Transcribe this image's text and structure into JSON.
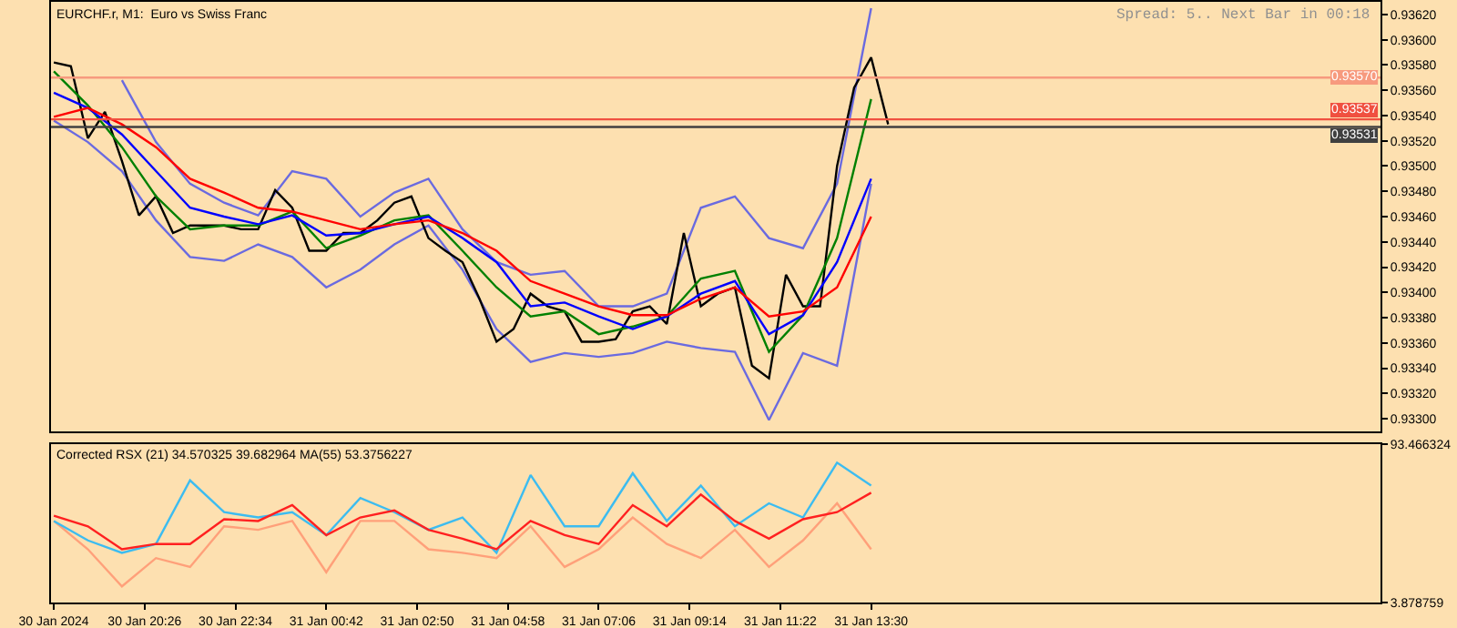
{
  "chart_data": [
    {
      "type": "line",
      "title": "EURCHF.r, M1:  Euro vs Swiss Franc",
      "annotations": [
        "Spread: 5.. Next Bar in 00:18"
      ],
      "x": [
        "2024-01-30T18:18",
        "2024-01-30T18:42",
        "2024-01-30T19:06",
        "2024-01-30T19:30",
        "2024-01-30T19:54",
        "2024-01-30T20:18",
        "2024-01-30T20:42",
        "2024-01-30T21:06",
        "2024-01-30T21:30",
        "2024-01-30T21:54",
        "2024-01-30T22:18",
        "2024-01-30T22:42",
        "2024-01-30T23:06",
        "2024-01-30T23:30",
        "2024-01-30T23:54",
        "2024-01-31T00:18",
        "2024-01-31T00:42",
        "2024-01-31T01:06",
        "2024-01-31T01:30",
        "2024-01-31T01:54",
        "2024-01-31T02:18",
        "2024-01-31T02:42",
        "2024-01-31T03:06",
        "2024-01-31T03:30",
        "2024-01-31T03:54",
        "2024-01-31T04:18",
        "2024-01-31T04:42",
        "2024-01-31T05:06",
        "2024-01-31T05:30",
        "2024-01-31T05:54",
        "2024-01-31T06:18",
        "2024-01-31T06:42",
        "2024-01-31T07:06",
        "2024-01-31T07:30",
        "2024-01-31T07:54",
        "2024-01-31T08:18",
        "2024-01-31T08:42",
        "2024-01-31T09:06",
        "2024-01-31T09:30",
        "2024-01-31T09:54",
        "2024-01-31T10:18",
        "2024-01-31T10:42",
        "2024-01-31T11:06",
        "2024-01-31T11:30",
        "2024-01-31T11:54",
        "2024-01-31T12:18",
        "2024-01-31T12:42",
        "2024-01-31T13:06",
        "2024-01-31T13:30",
        "2024-01-31T13:54"
      ],
      "series": [
        {
          "color": "#6a6ae0",
          "x": [
            "2024-01-30T19:54",
            "2024-01-30T20:42",
            "2024-01-30T21:30",
            "2024-01-30T22:18",
            "2024-01-30T23:06",
            "2024-01-30T23:54",
            "2024-01-31T00:42",
            "2024-01-31T01:30",
            "2024-01-31T02:18",
            "2024-01-31T03:06",
            "2024-01-31T03:54",
            "2024-01-31T04:42",
            "2024-01-31T05:30",
            "2024-01-31T06:18",
            "2024-01-31T07:06",
            "2024-01-31T07:54",
            "2024-01-31T08:42",
            "2024-01-31T09:30",
            "2024-01-31T10:18",
            "2024-01-31T11:06",
            "2024-01-31T11:54",
            "2024-01-31T12:42",
            "2024-01-31T13:30"
          ],
          "values": [
            0.93568,
            0.93519,
            0.93486,
            0.93471,
            0.93461,
            0.93496,
            0.9349,
            0.9346,
            0.93479,
            0.9349,
            0.9345,
            0.93424,
            0.93414,
            0.93417,
            0.93389,
            0.93389,
            0.93399,
            0.93467,
            0.93476,
            0.93443,
            0.93435,
            0.93486,
            0.93625
          ]
        },
        {
          "color": "#6a6ae0",
          "x": [
            "2024-01-30T18:18",
            "2024-01-30T19:06",
            "2024-01-30T19:54",
            "2024-01-30T20:42",
            "2024-01-30T21:30",
            "2024-01-30T22:18",
            "2024-01-30T23:06",
            "2024-01-30T23:54",
            "2024-01-31T00:42",
            "2024-01-31T01:30",
            "2024-01-31T02:18",
            "2024-01-31T03:06",
            "2024-01-31T03:54",
            "2024-01-31T04:42",
            "2024-01-31T05:30",
            "2024-01-31T06:18",
            "2024-01-31T07:06",
            "2024-01-31T07:54",
            "2024-01-31T08:42",
            "2024-01-31T09:30",
            "2024-01-31T10:18",
            "2024-01-31T11:06",
            "2024-01-31T11:54",
            "2024-01-31T12:42",
            "2024-01-31T13:30"
          ],
          "values": [
            0.93536,
            0.93519,
            0.93496,
            0.93457,
            0.93428,
            0.93425,
            0.93438,
            0.93428,
            0.93404,
            0.93418,
            0.93438,
            0.93453,
            0.93418,
            0.93371,
            0.93345,
            0.93352,
            0.93349,
            0.93352,
            0.93361,
            0.93356,
            0.93353,
            0.93299,
            0.93352,
            0.93342,
            0.93486
          ]
        },
        {
          "color": "#000000",
          "values": [
            0.93582,
            0.93579,
            0.93522,
            0.93543,
            0.93504,
            0.93461,
            0.93476,
            0.93447,
            0.93453,
            0.93453,
            0.93453,
            0.9345,
            0.9345,
            0.93481,
            0.93467,
            0.93433,
            0.93433,
            0.93447,
            0.93447,
            0.93457,
            0.93471,
            0.93476,
            0.93443,
            0.93433,
            0.93424,
            0.93395,
            0.93361,
            0.93371,
            0.93399,
            0.93389,
            0.93385,
            0.93361,
            0.93361,
            0.93363,
            0.93385,
            0.93389,
            0.93375,
            0.93447,
            0.93389,
            0.93399,
            0.93404,
            0.93342,
            0.93332,
            0.93414,
            0.93389,
            0.93389,
            0.935,
            0.93562,
            0.93586,
            0.93533
          ]
        },
        {
          "color": "#008000",
          "x": [
            "2024-01-30T18:18",
            "2024-01-30T19:06",
            "2024-01-30T19:54",
            "2024-01-30T20:42",
            "2024-01-30T21:30",
            "2024-01-30T22:18",
            "2024-01-30T23:06",
            "2024-01-30T23:54",
            "2024-01-31T00:42",
            "2024-01-31T01:30",
            "2024-01-31T02:18",
            "2024-01-31T03:06",
            "2024-01-31T03:54",
            "2024-01-31T04:42",
            "2024-01-31T05:30",
            "2024-01-31T06:18",
            "2024-01-31T07:06",
            "2024-01-31T07:54",
            "2024-01-31T08:42",
            "2024-01-31T09:30",
            "2024-01-31T10:18",
            "2024-01-31T11:06",
            "2024-01-31T11:54",
            "2024-01-31T12:42",
            "2024-01-31T13:30"
          ],
          "values": [
            0.93575,
            0.93548,
            0.93515,
            0.93476,
            0.9345,
            0.93453,
            0.93453,
            0.93464,
            0.93435,
            0.93445,
            0.93457,
            0.93461,
            0.93433,
            0.93404,
            0.93381,
            0.93385,
            0.93367,
            0.93373,
            0.93381,
            0.93411,
            0.93417,
            0.93353,
            0.93382,
            0.93443,
            0.93553
          ]
        },
        {
          "color": "#0000ff",
          "x": [
            "2024-01-30T18:18",
            "2024-01-30T19:06",
            "2024-01-30T19:54",
            "2024-01-30T20:42",
            "2024-01-30T21:30",
            "2024-01-30T22:18",
            "2024-01-30T23:06",
            "2024-01-30T23:54",
            "2024-01-31T00:42",
            "2024-01-31T01:30",
            "2024-01-31T02:18",
            "2024-01-31T03:06",
            "2024-01-31T03:54",
            "2024-01-31T04:42",
            "2024-01-31T05:30",
            "2024-01-31T06:18",
            "2024-01-31T07:06",
            "2024-01-31T07:54",
            "2024-01-31T08:42",
            "2024-01-31T09:30",
            "2024-01-31T10:18",
            "2024-01-31T11:06",
            "2024-01-31T11:54",
            "2024-01-31T12:42",
            "2024-01-31T13:30"
          ],
          "values": [
            0.93558,
            0.93546,
            0.93525,
            0.93496,
            0.93467,
            0.9346,
            0.93454,
            0.93461,
            0.93445,
            0.93447,
            0.93454,
            0.9346,
            0.93443,
            0.93424,
            0.93389,
            0.93392,
            0.93381,
            0.93371,
            0.93381,
            0.93399,
            0.93409,
            0.93367,
            0.93382,
            0.93424,
            0.9349
          ]
        },
        {
          "color": "#ff0000",
          "x": [
            "2024-01-30T18:18",
            "2024-01-30T19:06",
            "2024-01-30T19:54",
            "2024-01-30T20:42",
            "2024-01-30T21:30",
            "2024-01-30T22:18",
            "2024-01-30T23:06",
            "2024-01-30T23:54",
            "2024-01-31T00:42",
            "2024-01-31T01:30",
            "2024-01-31T02:18",
            "2024-01-31T03:06",
            "2024-01-31T03:54",
            "2024-01-31T04:42",
            "2024-01-31T05:30",
            "2024-01-31T06:18",
            "2024-01-31T07:06",
            "2024-01-31T07:54",
            "2024-01-31T08:42",
            "2024-01-31T09:30",
            "2024-01-31T10:18",
            "2024-01-31T11:06",
            "2024-01-31T11:54",
            "2024-01-31T12:42",
            "2024-01-31T13:30"
          ],
          "values": [
            0.93539,
            0.93546,
            0.93533,
            0.93515,
            0.9349,
            0.93479,
            0.93467,
            0.93464,
            0.93457,
            0.9345,
            0.93454,
            0.93457,
            0.93447,
            0.93433,
            0.93409,
            0.93399,
            0.93389,
            0.93382,
            0.93382,
            0.93395,
            0.93404,
            0.93381,
            0.93385,
            0.93404,
            0.9346
          ]
        }
      ],
      "ref_lines": [
        {
          "axis": "y",
          "value": 0.9357,
          "label": "0.93570",
          "color": "#f79a7e"
        },
        {
          "axis": "y",
          "value": 0.93537,
          "label": "0.93537",
          "color": "#f05040"
        },
        {
          "axis": "y",
          "value": 0.93531,
          "label": "0.93531",
          "color": "#404040"
        }
      ],
      "xlim": [
        "2024-01-30T18:14",
        "2024-02-01T01:28"
      ],
      "ylim": [
        0.9329,
        0.9363
      ],
      "yticks": [
        {
          "value": 0.933,
          "label": "0.93300"
        },
        {
          "value": 0.9332,
          "label": "0.93320"
        },
        {
          "value": 0.9334,
          "label": "0.93340"
        },
        {
          "value": 0.9336,
          "label": "0.93360"
        },
        {
          "value": 0.9338,
          "label": "0.93380"
        },
        {
          "value": 0.934,
          "label": "0.93400"
        },
        {
          "value": 0.9342,
          "label": "0.93420"
        },
        {
          "value": 0.9344,
          "label": "0.93440"
        },
        {
          "value": 0.9346,
          "label": "0.93460"
        },
        {
          "value": 0.9348,
          "label": "0.93480"
        },
        {
          "value": 0.935,
          "label": "0.93500"
        },
        {
          "value": 0.9352,
          "label": "0.93520"
        },
        {
          "value": 0.9354,
          "label": "0.93540"
        },
        {
          "value": 0.9356,
          "label": "0.93560"
        },
        {
          "value": 0.9358,
          "label": "0.93580"
        },
        {
          "value": 0.936,
          "label": "0.93600"
        },
        {
          "value": 0.9362,
          "label": "0.93620"
        }
      ],
      "tick_labels": "y"
    },
    {
      "type": "line",
      "title": "Corrected RSX (21) 34.570325 39.682964 MA(55) 53.3756227",
      "x": [
        "2024-01-30T18:18",
        "2024-01-30T19:06",
        "2024-01-30T19:54",
        "2024-01-30T20:42",
        "2024-01-30T21:30",
        "2024-01-30T22:18",
        "2024-01-30T23:06",
        "2024-01-30T23:54",
        "2024-01-31T00:42",
        "2024-01-31T01:30",
        "2024-01-31T02:18",
        "2024-01-31T03:06",
        "2024-01-31T03:54",
        "2024-01-31T04:42",
        "2024-01-31T05:30",
        "2024-01-31T06:18",
        "2024-01-31T07:06",
        "2024-01-31T07:54",
        "2024-01-31T08:42",
        "2024-01-31T09:30",
        "2024-01-31T10:18",
        "2024-01-31T11:06",
        "2024-01-31T11:54",
        "2024-01-31T12:42",
        "2024-01-31T13:30"
      ],
      "series": [
        {
          "color": "#ffa07a",
          "values": [
            50,
            34,
            13,
            29,
            24,
            47,
            45,
            50,
            21,
            50,
            50,
            34,
            32,
            29,
            47,
            24,
            34,
            52,
            37,
            29,
            45,
            24,
            39,
            60,
            34
          ]
        },
        {
          "color": "#3cbcf0",
          "values": [
            50,
            39,
            32,
            37,
            73,
            55,
            52,
            55,
            42,
            63,
            55,
            45,
            52,
            32,
            76,
            47,
            47,
            77,
            50,
            70,
            47,
            60,
            52,
            83,
            70
          ]
        },
        {
          "color": "#ff2020",
          "values": [
            53,
            47,
            34,
            37,
            37,
            51,
            50,
            59,
            42,
            52,
            56,
            45,
            40,
            34,
            50,
            42,
            37,
            59,
            47,
            65,
            50,
            40,
            51,
            55,
            66
          ]
        }
      ],
      "xlim": [
        "2024-01-30T18:14",
        "2024-02-01T01:28"
      ],
      "xticks": [
        {
          "value": "2024-01-30T18:18",
          "label": "30 Jan 2024"
        },
        {
          "value": "2024-01-30T20:26",
          "label": "30 Jan 20:26"
        },
        {
          "value": "2024-01-30T22:34",
          "label": "30 Jan 22:34"
        },
        {
          "value": "2024-01-31T00:42",
          "label": "31 Jan 00:42"
        },
        {
          "value": "2024-01-31T02:50",
          "label": "31 Jan 02:50"
        },
        {
          "value": "2024-01-31T04:58",
          "label": "31 Jan 04:58"
        },
        {
          "value": "2024-01-31T07:06",
          "label": "31 Jan 07:06"
        },
        {
          "value": "2024-01-31T09:14",
          "label": "31 Jan 09:14"
        },
        {
          "value": "2024-01-31T11:22",
          "label": "31 Jan 11:22"
        },
        {
          "value": "2024-01-31T13:30",
          "label": "31 Jan 13:30"
        }
      ],
      "ylim": [
        3.878759,
        93.466324
      ],
      "yticks": [
        3.878759,
        93.466324
      ]
    }
  ]
}
